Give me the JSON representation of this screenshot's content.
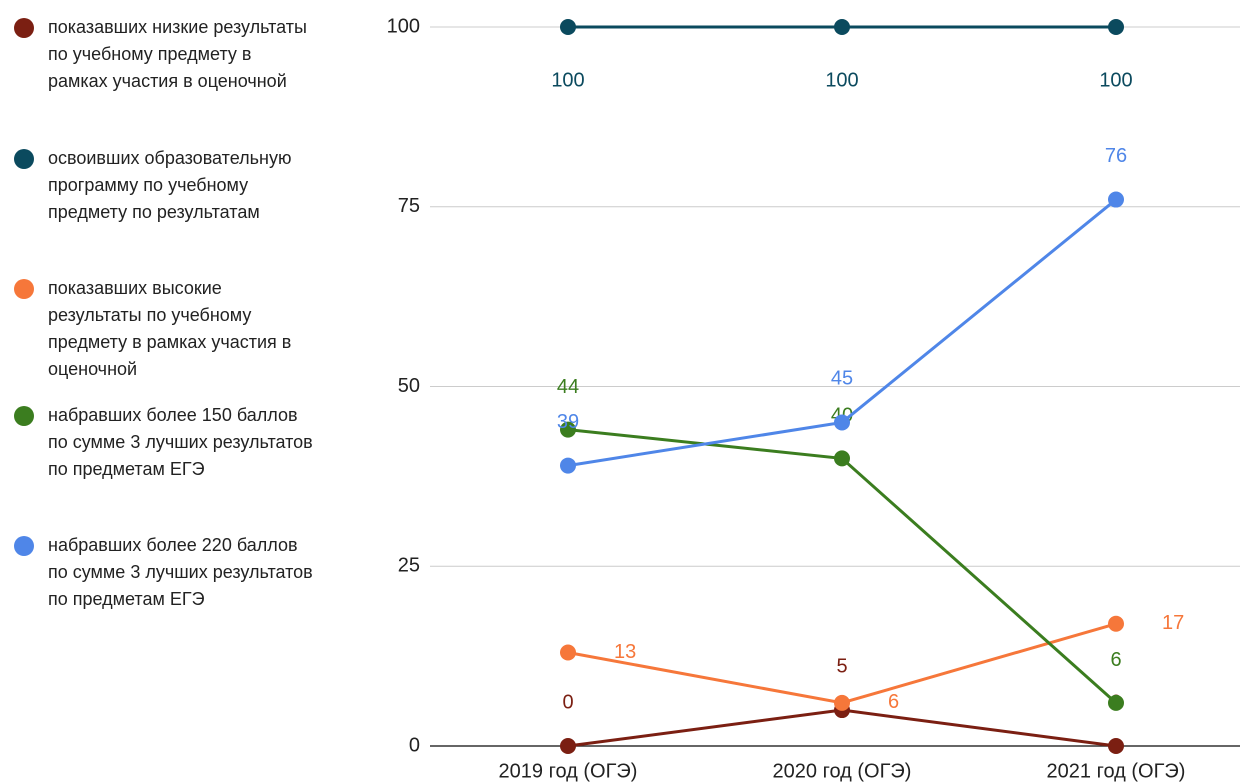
{
  "chart_data": {
    "type": "line",
    "categories": [
      "2019 год (ОГЭ)",
      "2020 год (ОГЭ)",
      "2021 год (ОГЭ)"
    ],
    "series": [
      {
        "name": "показавших низкие результаты по учебному предмету в рамках участия в оценочной",
        "color": "#7b1f12",
        "values": [
          0,
          5,
          0
        ]
      },
      {
        "name": "освоивших образовательную программу по учебному предмету по результатам",
        "color": "#0b4a5e",
        "values": [
          100,
          100,
          100
        ]
      },
      {
        "name": "показавших высокие результаты по учебному предмету в рамках участия в оценочной",
        "color": "#f6773a",
        "values": [
          13,
          6,
          17
        ]
      },
      {
        "name": "набравших более 150 баллов по сумме 3 лучших результатов по предметам ЕГЭ",
        "color": "#3b7d1f",
        "values": [
          44,
          40,
          6
        ]
      },
      {
        "name": "набравших более 220 баллов по сумме 3 лучших результатов по предметам ЕГЭ",
        "color": "#4f86e8",
        "values": [
          39,
          45,
          76
        ]
      }
    ],
    "ylim": [
      0,
      100
    ],
    "yticks": [
      0,
      25,
      50,
      75,
      100
    ],
    "grid": true,
    "legend": "left"
  }
}
